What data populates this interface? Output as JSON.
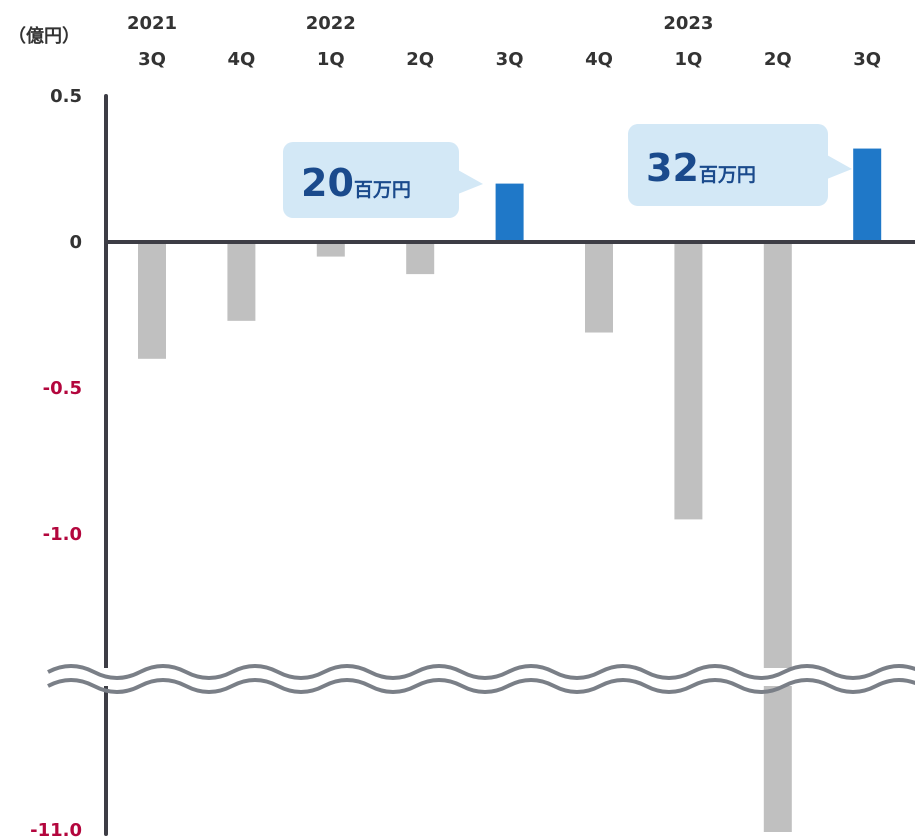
{
  "chart_data": {
    "type": "bar",
    "unit_label": "（億円）",
    "year_labels": [
      {
        "text": "2021",
        "category_index": 0
      },
      {
        "text": "2022",
        "category_index": 2
      },
      {
        "text": "2023",
        "category_index": 6
      }
    ],
    "categories": [
      "3Q",
      "4Q",
      "1Q",
      "2Q",
      "3Q",
      "4Q",
      "1Q",
      "2Q",
      "3Q"
    ],
    "values": [
      -0.4,
      -0.27,
      -0.05,
      -0.11,
      0.2,
      -0.31,
      -0.95,
      -11.0,
      0.32
    ],
    "highlight_indices": [
      4,
      8
    ],
    "yticks": [
      {
        "label": "0.5",
        "value": 0.5
      },
      {
        "label": "0",
        "value": 0
      },
      {
        "label": "-0.5",
        "value": -0.5
      },
      {
        "label": "-1.0",
        "value": -1.0
      },
      {
        "label": "-11.0",
        "value": -11.0
      }
    ],
    "axis_break": {
      "from": -1.3,
      "to": -10.5
    },
    "callouts": [
      {
        "category_index": 4,
        "number": "20",
        "unit": "百万円"
      },
      {
        "category_index": 8,
        "number": "32",
        "unit": "百万円"
      }
    ],
    "colors": {
      "positive": "#1f78c8",
      "negative": "#c0c0c0",
      "axis": "#3d3d45",
      "negative_tick": "#b3063d",
      "tick": "#333333",
      "callout_bg": "#d3e8f6",
      "callout_text": "#1a4a8c",
      "break_line": "#7a7f87"
    }
  }
}
